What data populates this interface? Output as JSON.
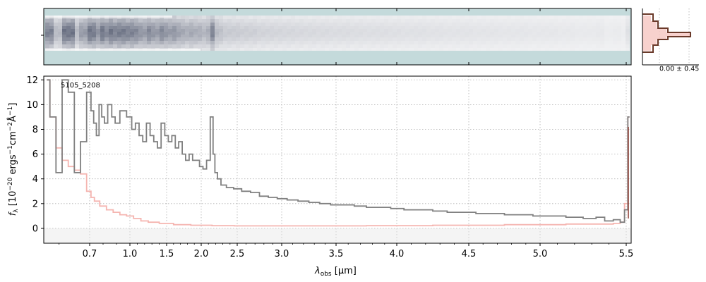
{
  "chart_data": [
    {
      "type": "heatmap",
      "panel": "2d-spectrum",
      "description_colors": {
        "background": "#c4dadb",
        "dark": "#0b1533",
        "light": "#ffffff"
      },
      "ylim": [
        -1,
        1
      ]
    },
    {
      "type": "line",
      "panel": "1d-spectrum",
      "label_text": "5105_5208",
      "xlabel_base": "λ",
      "xlabel_sub": "obs",
      "xlabel_unit": " [μm]",
      "ylabel": "f_λ [10^-20 ergs^-1 cm^-2 Å^-1]",
      "ylabel_parts": {
        "a": "f",
        "b": "λ",
        "c": " [10",
        "d": "−20",
        "e": " ergs",
        "f": "−1",
        "g": "cm",
        "h": "−2",
        "i": "Å",
        "j": "−1",
        "k": "]"
      },
      "xlim": [
        0.55,
        5.53
      ],
      "ylim": [
        -1.2,
        12.3
      ],
      "x_tick_values": [
        0.7,
        1.0,
        1.5,
        2.0,
        2.5,
        3.0,
        3.5,
        4.0,
        4.5,
        5.0,
        5.5
      ],
      "x_tick_labels": [
        "0.7",
        "1.0",
        "1.5",
        "2.0",
        "2.5",
        "3.0",
        "3.5",
        "4.0",
        "4.5",
        "5.0",
        "5.5"
      ],
      "y_ticks": [
        0,
        2,
        4,
        6,
        8,
        10,
        12
      ],
      "grid": true,
      "series": [
        {
          "role": "flux",
          "color": "#808080",
          "x": [
            0.56,
            0.58,
            0.6,
            0.62,
            0.64,
            0.66,
            0.68,
            0.7,
            0.72,
            0.74,
            0.76,
            0.78,
            0.8,
            0.82,
            0.85,
            0.88,
            0.9,
            0.95,
            1.0,
            1.05,
            1.1,
            1.15,
            1.2,
            1.25,
            1.3,
            1.35,
            1.4,
            1.45,
            1.5,
            1.55,
            1.6,
            1.65,
            1.7,
            1.75,
            1.8,
            1.85,
            1.9,
            1.95,
            2.0,
            2.05,
            2.1,
            2.15,
            2.18,
            2.2,
            2.25,
            2.3,
            2.4,
            2.5,
            2.6,
            2.7,
            2.8,
            2.9,
            3.0,
            3.1,
            3.2,
            3.3,
            3.4,
            3.5,
            3.6,
            3.7,
            3.8,
            3.9,
            4.0,
            4.1,
            4.2,
            4.3,
            4.4,
            4.5,
            4.6,
            4.7,
            4.8,
            4.9,
            5.0,
            5.1,
            5.2,
            5.3,
            5.35,
            5.4,
            5.45,
            5.48,
            5.5,
            5.52
          ],
          "y": [
            12.0,
            9.0,
            4.5,
            12.0,
            11.0,
            4.5,
            7.0,
            11.0,
            9.5,
            8.5,
            7.5,
            10.0,
            9.0,
            8.5,
            10.0,
            9.0,
            8.5,
            9.5,
            9.0,
            8.0,
            8.5,
            7.5,
            7.0,
            8.5,
            7.5,
            7.0,
            6.5,
            8.5,
            7.5,
            7.0,
            7.5,
            6.5,
            7.0,
            6.0,
            5.5,
            6.0,
            5.5,
            5.5,
            5.0,
            4.8,
            5.5,
            9.0,
            6.0,
            4.5,
            4.0,
            3.5,
            3.3,
            3.2,
            3.0,
            2.9,
            2.6,
            2.5,
            2.4,
            2.3,
            2.2,
            2.1,
            2.0,
            1.9,
            1.9,
            1.8,
            1.7,
            1.7,
            1.6,
            1.5,
            1.5,
            1.4,
            1.3,
            1.3,
            1.2,
            1.2,
            1.1,
            1.1,
            1.0,
            1.0,
            0.9,
            0.8,
            0.9,
            0.6,
            0.7,
            0.5,
            1.5,
            9.0
          ]
        },
        {
          "role": "error",
          "color": "#f5b5b0",
          "x": [
            0.56,
            0.58,
            0.6,
            0.62,
            0.64,
            0.66,
            0.68,
            0.7,
            0.72,
            0.75,
            0.8,
            0.85,
            0.9,
            0.95,
            1.0,
            1.1,
            1.2,
            1.3,
            1.5,
            1.7,
            2.0,
            2.3,
            2.6,
            3.0,
            3.5,
            4.0,
            4.5,
            5.0,
            5.3,
            5.4,
            5.45,
            5.48,
            5.5,
            5.52
          ],
          "y": [
            12.0,
            9.0,
            6.5,
            5.5,
            5.0,
            4.7,
            4.4,
            3.0,
            2.5,
            2.2,
            1.8,
            1.5,
            1.3,
            1.1,
            1.0,
            0.8,
            0.6,
            0.5,
            0.4,
            0.3,
            0.25,
            0.22,
            0.2,
            0.2,
            0.2,
            0.22,
            0.25,
            0.3,
            0.35,
            0.35,
            0.4,
            0.5,
            2.0,
            9.0
          ]
        }
      ]
    },
    {
      "type": "line",
      "panel": "profile",
      "label_text": "0.00 ± 0.45",
      "series_colors": {
        "fill": "#f5c6c0",
        "line": "#6b3a2a"
      }
    }
  ]
}
